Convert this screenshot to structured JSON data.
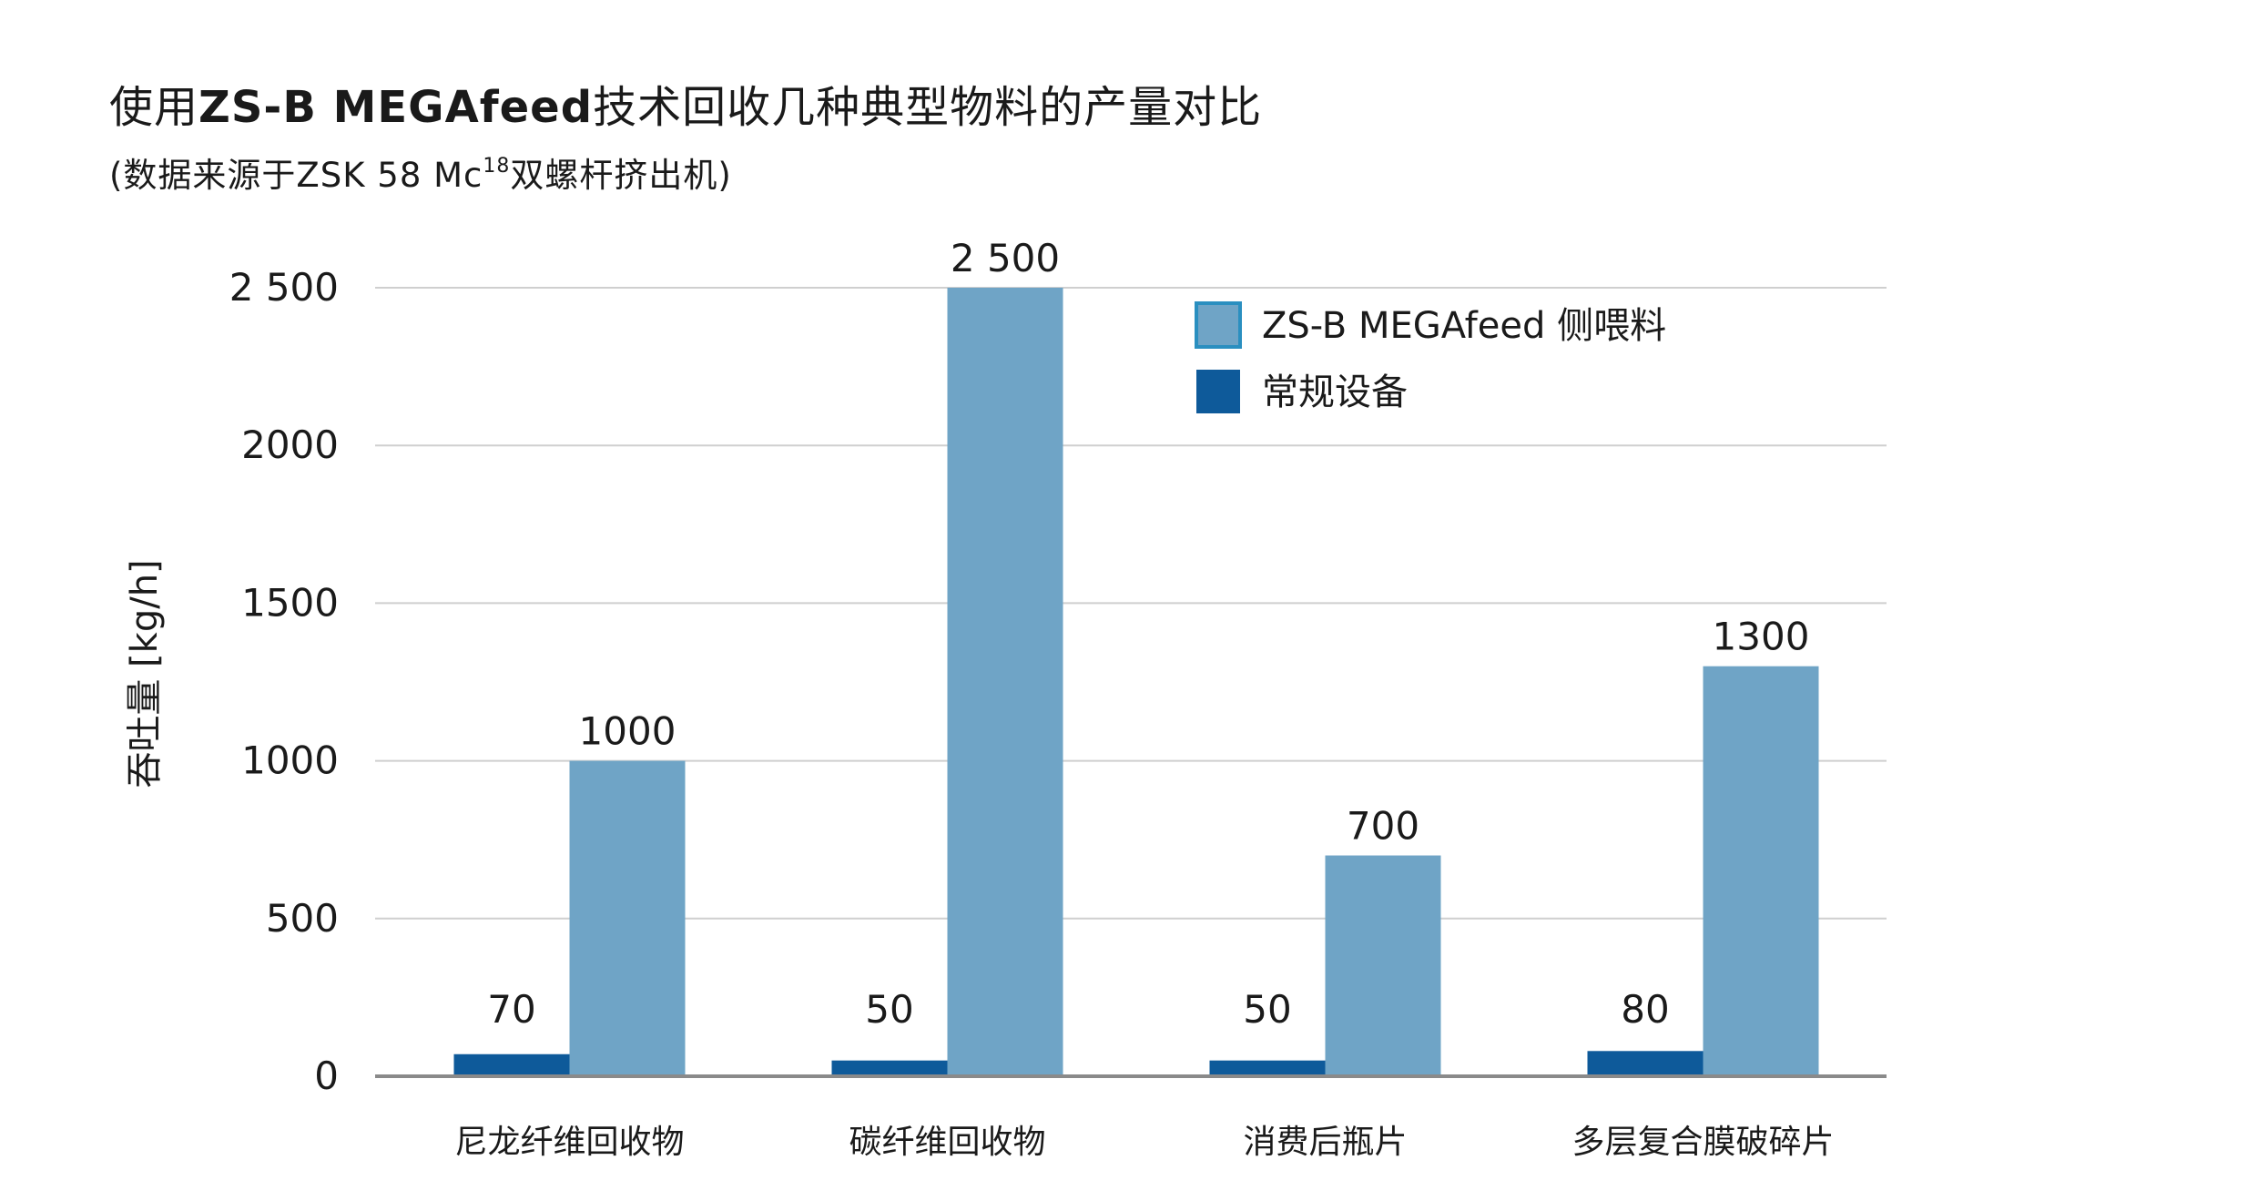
{
  "title": {
    "prefix": "使用",
    "brand": "ZS-B MEGAfeed",
    "suffix": "技术回收几种典型物料的产量对比"
  },
  "subtitle": {
    "before_sup": "(数据来源于ZSK 58 Mc",
    "sup": "18",
    "after_sup": "双螺杆挤出机)"
  },
  "colors": {
    "megafeed": "#6fa4c6",
    "megafeed_border": "#2a8fc0",
    "conventional": "#0e5a9a",
    "grid": "#cfcfcf",
    "axis": "#8a8a8a"
  },
  "chart_data": {
    "type": "bar",
    "ylabel": "吞吐量 [kg/h]",
    "ylim": [
      0,
      2500
    ],
    "yticks": [
      0,
      500,
      1000,
      1500,
      2000,
      2500
    ],
    "ytick_labels": [
      "0",
      "500",
      "1000",
      "1500",
      "2000",
      "2 500"
    ],
    "grid": true,
    "legend_position": "top-right",
    "categories": [
      "尼龙纤维回收物",
      "碳纤维回收物",
      "消费后瓶片",
      "多层复合膜破碎片"
    ],
    "series": [
      {
        "name": "常规设备",
        "color_key": "conventional",
        "values": [
          70,
          50,
          50,
          80
        ],
        "labels": [
          "70",
          "50",
          "50",
          "80"
        ]
      },
      {
        "name": "ZS-B MEGAfeed 侧喂料",
        "color_key": "megafeed",
        "values": [
          1000,
          2500,
          700,
          1300
        ],
        "labels": [
          "1000",
          "2 500",
          "700",
          "1300"
        ]
      }
    ],
    "legend_order": [
      1,
      0
    ]
  }
}
